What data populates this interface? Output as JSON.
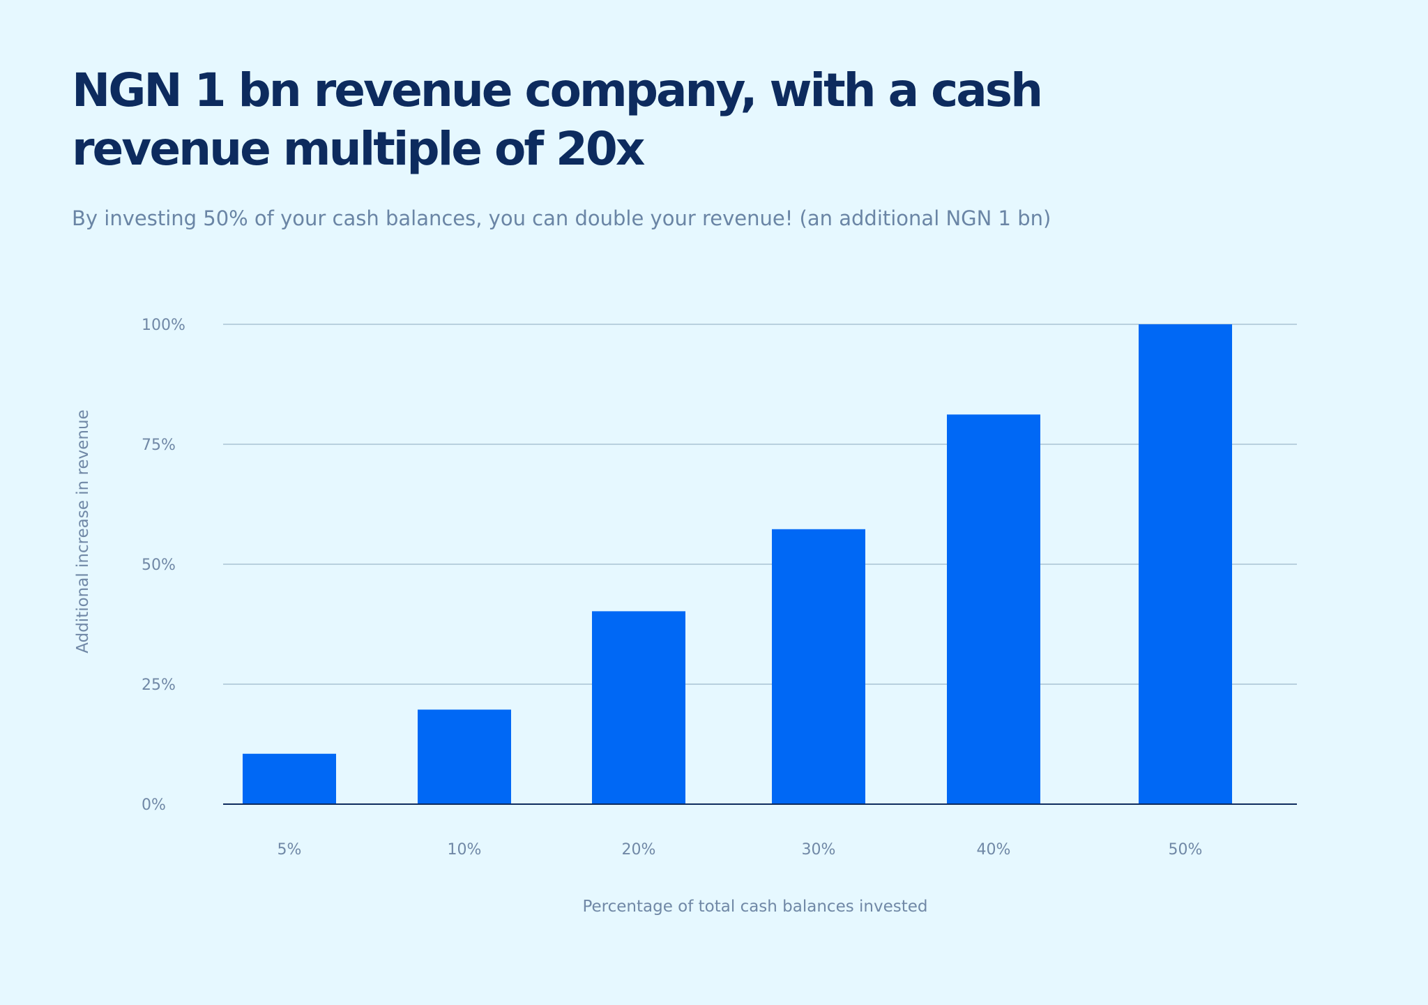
{
  "header": {
    "title": "NGN 1 bn revenue company, with a cash revenue multiple of 20x",
    "subtitle": "By investing 50% of your cash balances, you can double your revenue! (an additional NGN 1 bn)"
  },
  "colors": {
    "background": "#e6f8ff",
    "title": "#0d2b5e",
    "subtitle": "#6a85a5",
    "bar": "#0068f5",
    "gridline": "#a9c3d4",
    "baseline": "#0d2b5e",
    "label": "#7088a6"
  },
  "chart_data": {
    "type": "bar",
    "categories": [
      "5%",
      "10%",
      "20%",
      "30%",
      "40%",
      "50%"
    ],
    "values": [
      10.5,
      19.7,
      40.2,
      57.3,
      81.2,
      100
    ],
    "ylabel": "Additional increase in revenue",
    "xlabel": "Percentage of total cash balances invested",
    "ylim": [
      0,
      100
    ],
    "yticks": [
      0,
      25,
      50,
      75,
      100
    ],
    "ytick_labels": [
      "0%",
      "25%",
      "50%",
      "75%",
      "100%"
    ],
    "grid": true,
    "legend": "none"
  }
}
